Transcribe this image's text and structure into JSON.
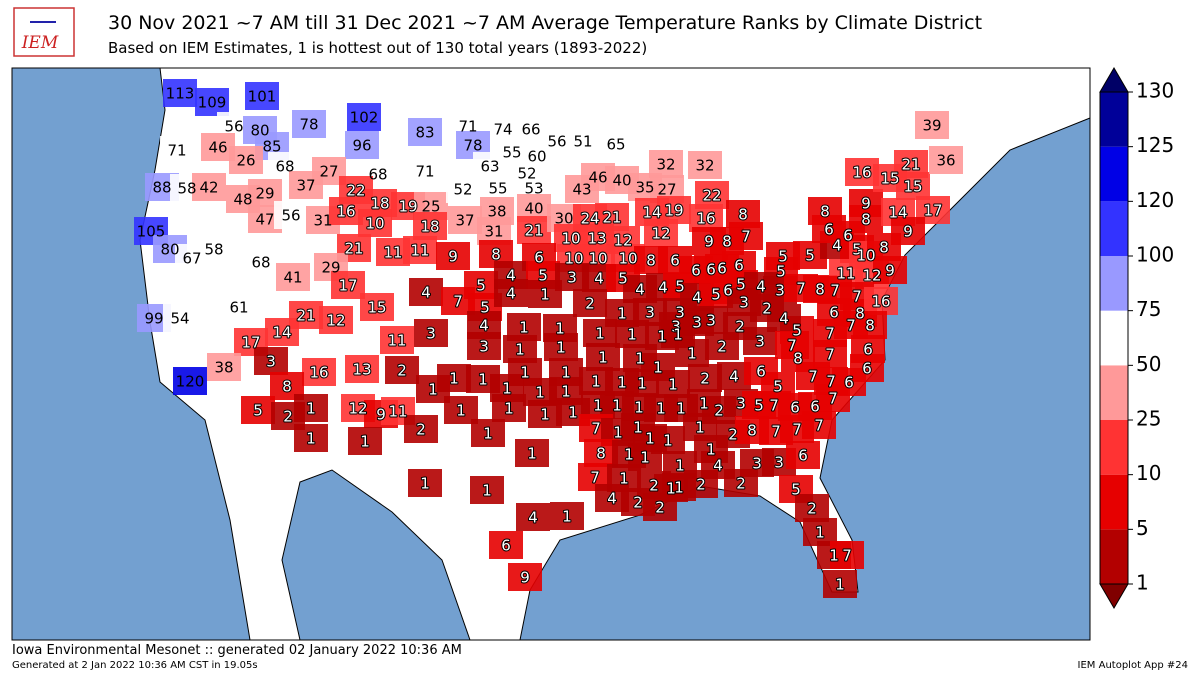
{
  "map": {
    "logo": "IEM",
    "title": "30 Nov 2021 ~7 AM till 31 Dec 2021 ~7 AM Average Temperature Ranks by Climate District",
    "subtitle": "Based on IEM Estimates, 1 is hottest out of 130 total years (1893-2022)",
    "ranks": [
      113,
      109,
      101,
      56,
      80,
      85,
      78,
      102,
      96,
      83,
      71,
      46,
      26,
      68,
      27,
      68,
      71,
      37,
      22,
      88,
      58,
      42,
      48,
      29,
      47,
      56,
      31,
      16,
      18,
      10,
      19,
      25,
      18,
      105,
      80,
      67,
      58,
      68,
      21,
      11,
      11,
      29,
      41,
      17,
      61,
      15,
      99,
      54,
      21,
      12,
      14,
      17,
      11,
      3,
      16,
      13,
      2,
      120,
      38,
      8,
      5,
      2,
      1,
      12,
      9,
      11,
      2,
      1,
      1,
      1,
      1,
      1,
      1,
      1,
      1,
      71,
      74,
      66,
      78,
      55,
      60,
      63,
      52,
      56,
      51,
      65,
      52,
      55,
      53,
      43,
      46,
      40,
      35,
      27,
      32,
      32,
      22,
      37,
      38,
      31,
      40,
      21,
      30,
      24,
      21,
      14,
      19,
      16,
      8,
      10,
      13,
      12,
      12,
      9,
      8,
      6,
      10,
      10,
      10,
      8,
      6,
      9,
      8,
      7,
      5,
      4,
      5,
      3,
      4,
      5,
      4,
      7,
      5,
      4,
      1,
      2,
      1,
      4,
      4,
      5,
      6,
      6,
      6,
      6,
      5,
      5,
      4,
      5,
      6,
      8,
      9,
      8,
      6,
      16,
      15,
      21,
      15,
      39,
      36,
      14,
      17,
      9,
      10,
      8,
      5,
      4,
      5,
      6,
      5,
      4,
      3,
      7,
      8,
      11,
      12,
      9,
      7,
      7,
      8,
      16,
      6,
      7,
      7,
      8,
      6,
      6,
      3,
      2,
      3,
      3,
      3,
      3,
      3,
      3,
      4,
      1,
      1,
      1,
      1,
      1,
      1,
      2,
      3,
      5,
      4,
      2,
      1,
      3,
      1,
      1,
      1,
      1,
      1,
      1,
      7,
      8,
      7,
      1,
      1,
      1,
      1,
      1,
      1,
      1,
      2,
      4,
      6,
      5,
      7,
      7,
      6,
      1,
      1,
      1,
      1,
      1,
      1,
      1,
      1,
      1,
      1,
      1,
      1,
      2,
      3,
      5,
      7,
      6,
      6,
      7,
      7,
      1,
      1,
      1,
      1,
      1,
      2,
      8,
      7,
      7,
      7,
      8,
      1,
      1,
      1,
      1,
      4,
      3,
      3,
      6,
      7,
      1,
      2,
      1,
      1,
      2,
      2,
      5,
      4,
      2,
      2,
      2,
      4,
      1,
      1,
      6,
      1,
      7,
      9,
      1,
      4
    ],
    "colorbar": {
      "ticks": [
        1,
        5,
        10,
        25,
        50,
        75,
        100,
        120,
        125,
        130
      ],
      "colors": [
        "#b30000",
        "#e60000",
        "#ff3333",
        "#ff9999",
        "#ffffff",
        "#9999ff",
        "#3333ff",
        "#0000e6",
        "#000099"
      ]
    }
  },
  "footer": {
    "source": "Iowa Environmental Mesonet :: generated 02 January 2022 10:36 AM",
    "generated": "Generated at 2 Jan 2022 10:36 AM CST in 19.05s",
    "app": "IEM Autoplot App #24"
  }
}
